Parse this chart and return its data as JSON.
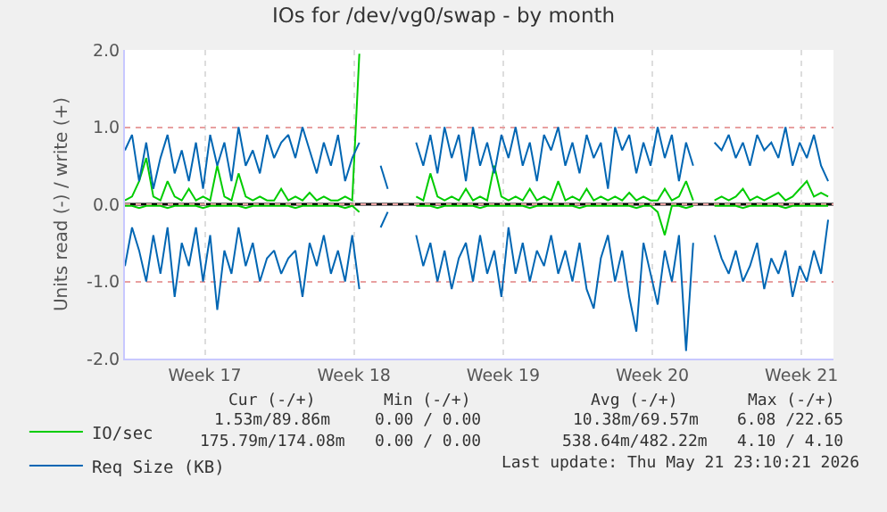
{
  "chart_data": {
    "type": "line",
    "title": "IOs for /dev/vg0/swap - by month",
    "ylabel": "Units read (-) / write (+)",
    "x": [
      "2026-04-19T18:00",
      "2026-04-20T02:00",
      "2026-04-20T10:00",
      "2026-04-20T18:00",
      "2026-04-21T02:00",
      "2026-04-21T10:00",
      "2026-04-21T18:00",
      "2026-04-22T02:00",
      "2026-04-22T10:00",
      "2026-04-22T18:00",
      "2026-04-23T02:00",
      "2026-04-23T10:00",
      "2026-04-23T18:00",
      "2026-04-24T02:00",
      "2026-04-24T10:00",
      "2026-04-24T18:00",
      "2026-04-25T02:00",
      "2026-04-25T10:00",
      "2026-04-25T18:00",
      "2026-04-26T02:00",
      "2026-04-26T10:00",
      "2026-04-26T18:00",
      "2026-04-27T02:00",
      "2026-04-27T10:00",
      "2026-04-27T18:00",
      "2026-04-28T02:00",
      "2026-04-28T10:00",
      "2026-04-28T18:00",
      "2026-04-29T02:00",
      "2026-04-29T10:00",
      "2026-04-29T18:00",
      "2026-04-30T02:00",
      "2026-04-30T10:00",
      "2026-04-30T18:00",
      "2026-05-01T02:00",
      "2026-05-01T10:00",
      "2026-05-01T18:00",
      "2026-05-02T02:00",
      "2026-05-02T10:00",
      "2026-05-02T18:00",
      "2026-05-03T02:00",
      "2026-05-03T10:00",
      "2026-05-03T18:00",
      "2026-05-04T02:00",
      "2026-05-04T10:00",
      "2026-05-04T18:00",
      "2026-05-05T02:00",
      "2026-05-05T10:00",
      "2026-05-05T18:00",
      "2026-05-06T02:00",
      "2026-05-06T10:00",
      "2026-05-06T18:00",
      "2026-05-07T02:00",
      "2026-05-07T10:00",
      "2026-05-07T18:00",
      "2026-05-08T02:00",
      "2026-05-08T10:00",
      "2026-05-08T18:00",
      "2026-05-09T02:00",
      "2026-05-09T10:00",
      "2026-05-09T18:00",
      "2026-05-10T02:00",
      "2026-05-10T10:00",
      "2026-05-10T18:00",
      "2026-05-11T02:00",
      "2026-05-11T10:00",
      "2026-05-11T18:00",
      "2026-05-12T02:00",
      "2026-05-12T10:00",
      "2026-05-12T18:00",
      "2026-05-13T02:00",
      "2026-05-13T10:00",
      "2026-05-13T18:00",
      "2026-05-14T02:00",
      "2026-05-14T10:00",
      "2026-05-14T18:00",
      "2026-05-15T02:00",
      "2026-05-15T10:00",
      "2026-05-15T18:00",
      "2026-05-16T02:00",
      "2026-05-16T10:00",
      "2026-05-16T18:00",
      "2026-05-17T02:00",
      "2026-05-17T10:00",
      "2026-05-17T18:00",
      "2026-05-18T02:00",
      "2026-05-18T10:00",
      "2026-05-18T18:00",
      "2026-05-19T02:00",
      "2026-05-19T10:00",
      "2026-05-19T18:00",
      "2026-05-20T02:00",
      "2026-05-20T10:00",
      "2026-05-20T18:00",
      "2026-05-21T02:00",
      "2026-05-21T10:00",
      "2026-05-21T18:00",
      "2026-05-22T02:00",
      "2026-05-22T10:00",
      "2026-05-22T18:00"
    ],
    "series": [
      {
        "name": "IO/sec",
        "color": "#00cc00",
        "values": [
          0.05,
          0.1,
          0.3,
          0.6,
          0.1,
          0.05,
          0.3,
          0.1,
          0.05,
          0.2,
          0.05,
          0.1,
          0.05,
          0.5,
          0.1,
          0.05,
          0.4,
          0.1,
          0.05,
          0.1,
          0.05,
          0.05,
          0.2,
          0.05,
          0.1,
          0.05,
          0.15,
          0.05,
          0.1,
          0.05,
          0.05,
          0.1,
          0.05,
          1.95,
          null,
          null,
          null,
          null,
          null,
          null,
          null,
          0.1,
          0.05,
          0.4,
          0.1,
          0.05,
          0.1,
          0.05,
          0.2,
          0.05,
          0.1,
          0.05,
          0.5,
          0.1,
          0.05,
          0.1,
          0.05,
          0.2,
          0.05,
          0.1,
          0.05,
          0.3,
          0.05,
          0.1,
          0.05,
          0.2,
          0.05,
          0.1,
          0.05,
          0.1,
          0.05,
          0.15,
          0.05,
          0.1,
          0.05,
          0.05,
          0.2,
          0.05,
          0.1,
          0.3,
          0.05,
          null,
          null,
          0.05,
          0.1,
          0.05,
          0.1,
          0.2,
          0.05,
          0.1,
          0.05,
          0.1,
          0.15,
          0.05,
          0.1,
          0.2,
          0.3,
          0.1,
          0.15,
          0.1
        ]
      },
      {
        "color": "#00cc00",
        "values": [
          -0.02,
          -0.02,
          -0.05,
          -0.02,
          -0.02,
          -0.02,
          -0.05,
          -0.02,
          -0.02,
          -0.02,
          -0.02,
          -0.05,
          -0.02,
          -0.02,
          -0.02,
          -0.02,
          -0.02,
          -0.05,
          -0.02,
          -0.02,
          -0.02,
          -0.02,
          -0.02,
          -0.02,
          -0.05,
          -0.02,
          -0.02,
          -0.02,
          -0.02,
          -0.02,
          -0.02,
          -0.05,
          -0.02,
          -0.1,
          null,
          null,
          null,
          null,
          null,
          null,
          null,
          -0.02,
          -0.02,
          -0.02,
          -0.05,
          -0.02,
          -0.02,
          -0.02,
          -0.02,
          -0.02,
          -0.05,
          -0.02,
          -0.02,
          -0.02,
          -0.02,
          -0.02,
          -0.02,
          -0.05,
          -0.02,
          -0.02,
          -0.02,
          -0.02,
          -0.02,
          -0.02,
          -0.05,
          -0.02,
          -0.02,
          -0.02,
          -0.02,
          -0.02,
          -0.02,
          -0.02,
          -0.05,
          -0.02,
          -0.02,
          -0.1,
          -0.4,
          -0.02,
          -0.02,
          -0.05,
          -0.02,
          null,
          null,
          -0.02,
          -0.02,
          -0.02,
          -0.02,
          -0.05,
          -0.02,
          -0.02,
          -0.02,
          -0.02,
          -0.02,
          -0.05,
          -0.02,
          -0.02,
          -0.02,
          -0.02,
          -0.02,
          -0.02
        ]
      },
      {
        "name": "Req Size (KB)",
        "color": "#0066b3",
        "values": [
          0.7,
          0.9,
          0.3,
          0.8,
          0.2,
          0.6,
          0.9,
          0.4,
          0.7,
          0.3,
          0.8,
          0.2,
          0.9,
          0.5,
          0.8,
          0.3,
          1.0,
          0.5,
          0.7,
          0.4,
          0.9,
          0.6,
          0.8,
          0.9,
          0.6,
          1.0,
          0.7,
          0.4,
          0.8,
          0.5,
          0.9,
          0.3,
          0.6,
          0.8,
          null,
          null,
          0.5,
          0.2,
          null,
          null,
          null,
          0.8,
          0.5,
          0.9,
          0.4,
          1.0,
          0.6,
          0.9,
          0.3,
          1.0,
          0.5,
          0.8,
          0.4,
          0.9,
          0.6,
          1.0,
          0.5,
          0.8,
          0.3,
          0.9,
          0.7,
          1.0,
          0.5,
          0.8,
          0.4,
          0.9,
          0.6,
          0.8,
          0.2,
          1.0,
          0.7,
          0.9,
          0.4,
          0.8,
          0.5,
          1.0,
          0.6,
          0.9,
          0.3,
          0.8,
          0.5,
          null,
          null,
          0.8,
          0.7,
          0.9,
          0.6,
          0.8,
          0.5,
          0.9,
          0.7,
          0.8,
          0.6,
          1.0,
          0.5,
          0.8,
          0.6,
          0.9,
          0.5,
          0.3
        ]
      },
      {
        "color": "#0066b3",
        "values": [
          -0.8,
          -0.3,
          -0.6,
          -1.0,
          -0.4,
          -0.9,
          -0.3,
          -1.2,
          -0.5,
          -0.8,
          -0.3,
          -1.0,
          -0.4,
          -1.37,
          -0.6,
          -0.9,
          -0.3,
          -0.8,
          -0.5,
          -1.0,
          -0.7,
          -0.6,
          -0.9,
          -0.7,
          -0.6,
          -1.2,
          -0.5,
          -0.8,
          -0.4,
          -0.9,
          -0.6,
          -1.0,
          -0.4,
          -1.1,
          null,
          null,
          -0.3,
          -0.1,
          null,
          null,
          null,
          -0.4,
          -0.8,
          -0.5,
          -1.0,
          -0.6,
          -1.1,
          -0.7,
          -0.5,
          -1.0,
          -0.4,
          -0.9,
          -0.6,
          -1.2,
          -0.3,
          -0.9,
          -0.5,
          -1.0,
          -0.6,
          -0.8,
          -0.4,
          -0.9,
          -0.6,
          -1.0,
          -0.5,
          -1.1,
          -1.35,
          -0.7,
          -0.4,
          -1.0,
          -0.6,
          -1.2,
          -1.65,
          -0.5,
          -0.9,
          -1.3,
          -0.6,
          -1.0,
          -0.4,
          -1.9,
          -0.5,
          null,
          null,
          -0.4,
          -0.7,
          -0.9,
          -0.6,
          -1.0,
          -0.8,
          -0.5,
          -1.1,
          -0.7,
          -0.9,
          -0.6,
          -1.2,
          -0.8,
          -1.0,
          -0.6,
          -0.9,
          -0.2
        ]
      }
    ],
    "xlim": [
      "2026-04-19T18:00",
      "2026-05-23T00:00"
    ],
    "xticks": [
      {
        "value": "2026-04-23T12:00",
        "label": "Week 17"
      },
      {
        "value": "2026-04-30T12:00",
        "label": "Week 18"
      },
      {
        "value": "2026-05-07T12:00",
        "label": "Week 19"
      },
      {
        "value": "2026-05-14T12:00",
        "label": "Week 20"
      },
      {
        "value": "2026-05-21T12:00",
        "label": "Week 21"
      }
    ],
    "ylim": [
      -2,
      2
    ],
    "yticks": [
      {
        "value": -2,
        "label": "-2.0"
      },
      {
        "value": -1,
        "label": "-1.0"
      },
      {
        "value": 0,
        "label": "0.0"
      },
      {
        "value": 1,
        "label": "1.0"
      },
      {
        "value": 2,
        "label": "2.0"
      }
    ],
    "ref_lines": [
      {
        "axis": "y",
        "value": 0,
        "color": "#000000"
      }
    ],
    "grid": true,
    "legend": "bottom left",
    "annotations": [
      "Cur (-/+)",
      "Min (-/+)",
      "Avg (-/+)",
      "Max (-/+)",
      "1.53m/89.86m",
      "0.00 / 0.00",
      "10.38m/69.57m",
      "6.08 /22.65",
      "175.79m/174.08m",
      "0.00 / 0.00",
      "538.64m/482.22m",
      "4.10 / 4.10",
      "Last update: Thu May 21 23:10:21 2026"
    ]
  }
}
